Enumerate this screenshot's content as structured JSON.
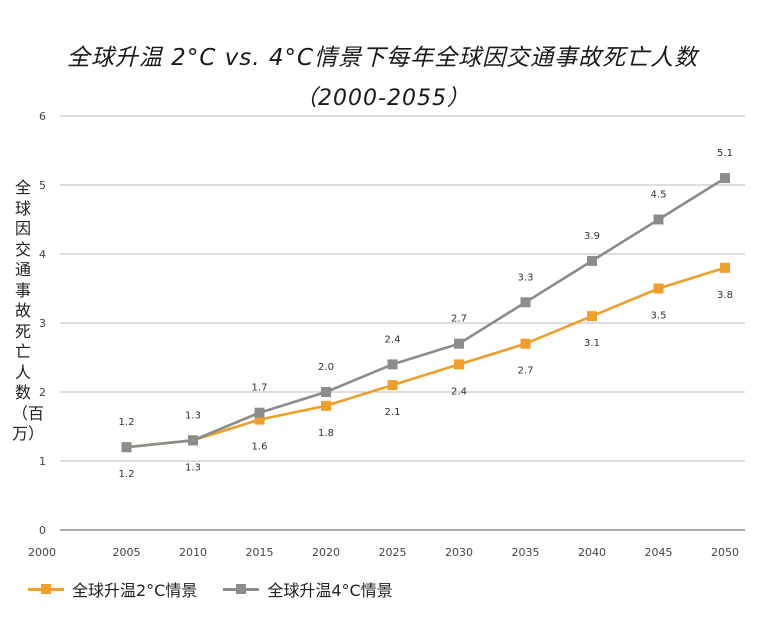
{
  "title_line1": "全球升温 2°C  vs. 4°C情景下每年全球因交通事故死亡人数",
  "title_line2": "（2000-2055）",
  "colors": {
    "series_2c": "#f0a02a",
    "series_4c": "#8c8c8c",
    "grid": "#bdbdbd",
    "axis": "#555555"
  },
  "chart_data": {
    "type": "line",
    "ylabel": "全球因交通事故死亡人数（百万）",
    "xlabel": "",
    "x": [
      2005,
      2010,
      2015,
      2020,
      2025,
      2030,
      2035,
      2040,
      2045,
      2050
    ],
    "x_ticks": [
      "2000",
      "2005",
      "2010",
      "2015",
      "2020",
      "2025",
      "2030",
      "2035",
      "2040",
      "2045",
      "2050"
    ],
    "y_ticks": [
      "0",
      "1",
      "2",
      "3",
      "4",
      "5",
      "6"
    ],
    "xlim": [
      2000,
      2050
    ],
    "ylim": [
      0,
      6
    ],
    "grid": "horizontal",
    "legend_position": "bottom-left",
    "series": [
      {
        "name": "全球升温2°C情景",
        "color": "#f0a02a",
        "values": [
          1.2,
          1.3,
          1.6,
          1.8,
          2.1,
          2.4,
          2.7,
          3.1,
          3.5,
          3.8
        ],
        "labels": [
          "1.2",
          "1.3",
          "1.6",
          "1.8",
          "2.1",
          "2.4",
          "2.7",
          "3.1",
          "3.5",
          "3.8"
        ],
        "label_position": "below"
      },
      {
        "name": "全球升温4°C情景",
        "color": "#8c8c8c",
        "values": [
          1.2,
          1.3,
          1.7,
          2.0,
          2.4,
          2.7,
          3.3,
          3.9,
          4.5,
          5.1
        ],
        "labels": [
          "1.2",
          "1.3",
          "1.7",
          "2.0",
          "2.4",
          "2.7",
          "3.3",
          "3.9",
          "4.5",
          "5.1"
        ],
        "label_position": "above"
      }
    ]
  }
}
